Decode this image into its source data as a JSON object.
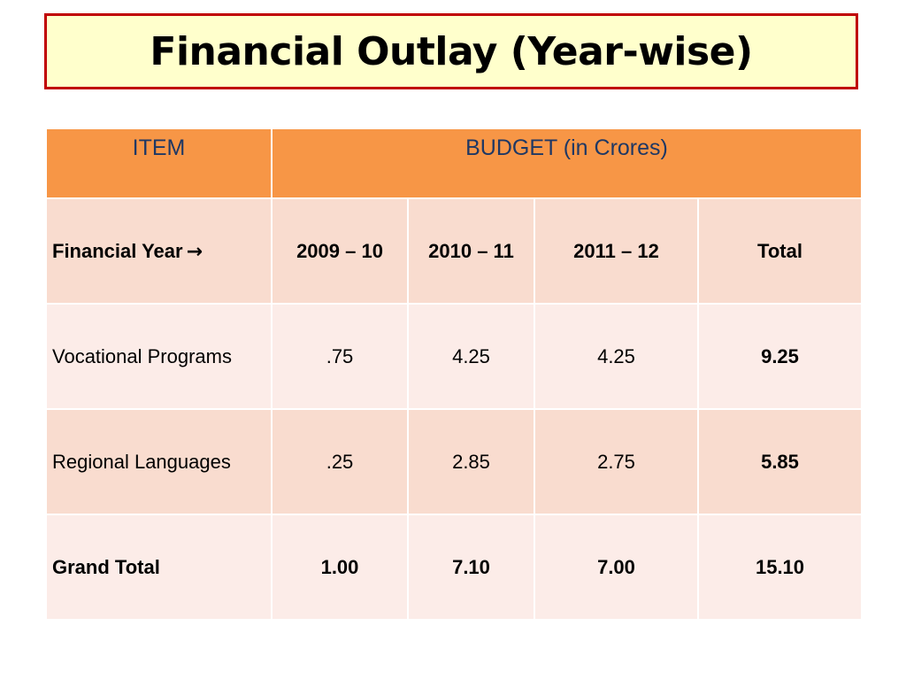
{
  "slide": {
    "title": "Financial Outlay (Year-wise)"
  },
  "table": {
    "header": {
      "item": "ITEM",
      "budget": "BUDGET (in Crores)"
    },
    "year_row": {
      "label": "Financial Year",
      "arrow": "→",
      "years": [
        "2009 – 10",
        "2010 – 11",
        "2011 – 12",
        "Total"
      ]
    },
    "rows": [
      {
        "item": "Vocational Programs",
        "values": [
          ".75",
          "4.25",
          "4.25",
          "9.25"
        ]
      },
      {
        "item": "Regional Languages",
        "values": [
          ".25",
          "2.85",
          "2.75",
          "5.85"
        ]
      },
      {
        "item": "Grand Total",
        "values": [
          "1.00",
          "7.10",
          "7.00",
          "15.10"
        ]
      }
    ]
  }
}
